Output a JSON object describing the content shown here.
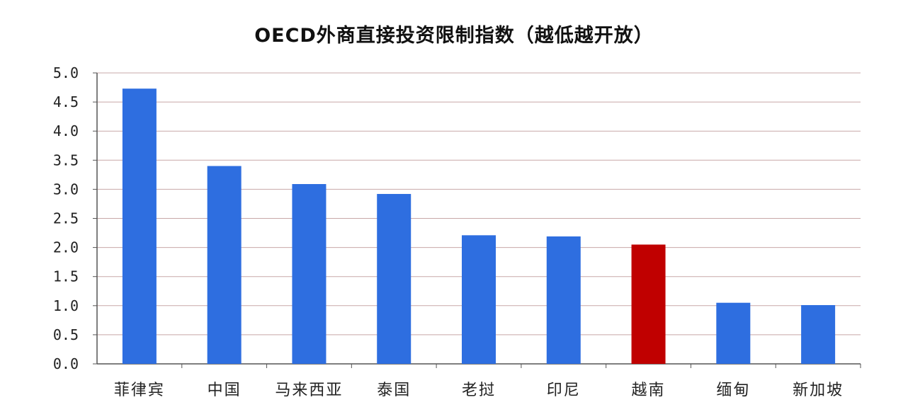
{
  "chart_data": {
    "type": "bar",
    "title": "OECD外商直接投资限制指数（越低越开放）",
    "categories": [
      "菲律宾",
      "中国",
      "马来西亚",
      "泰国",
      "老挝",
      "印尼",
      "越南",
      "缅甸",
      "新加坡"
    ],
    "values": [
      4.73,
      3.4,
      3.09,
      2.92,
      2.21,
      2.19,
      2.05,
      1.05,
      1.01
    ],
    "highlight_category": "越南",
    "ylim": [
      0,
      5
    ],
    "yticks": [
      "0.0",
      "0.5",
      "1.0",
      "1.5",
      "2.0",
      "2.5",
      "3.0",
      "3.5",
      "4.0",
      "4.5",
      "5.0"
    ],
    "xlabel": "",
    "ylabel": "",
    "grid": true,
    "legend": "none",
    "colors": {
      "bar": "#2e6ee0",
      "highlight": "#c00000",
      "grid": "#c8a8a8",
      "axis": "#555555"
    }
  }
}
